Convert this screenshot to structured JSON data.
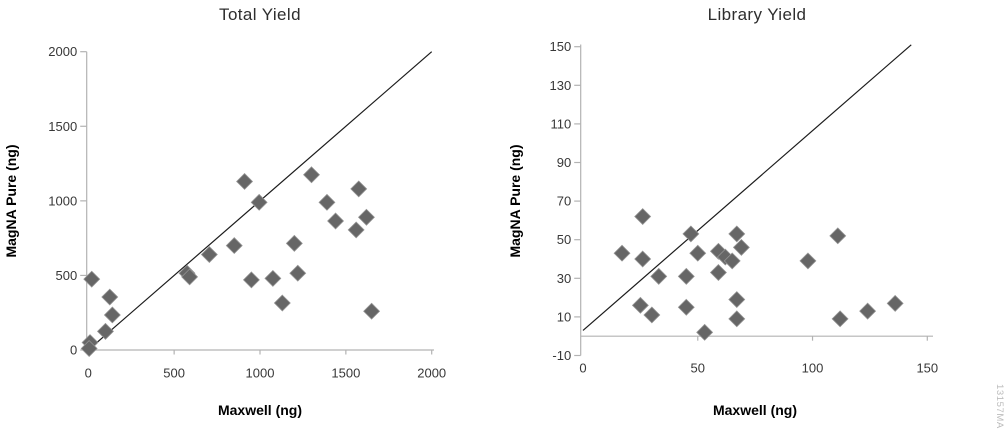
{
  "figure": {
    "watermark": "13157MA"
  },
  "colors": {
    "point": "#666666",
    "point_edge": "#929292",
    "axis": "#b3b3b3",
    "trend_line": "#1c1c1c",
    "tick_text": "#383838",
    "title_text": "#2e2e2e",
    "watermark_text": "#bcbcbc"
  },
  "chart_data": [
    {
      "type": "scatter",
      "title": "Total Yield",
      "xlabel": "Maxwell (ng)",
      "ylabel": "MagNA Pure (ng)",
      "xlim": [
        0,
        2000
      ],
      "ylim": [
        0,
        2000
      ],
      "x_ticks": [
        0,
        500,
        1000,
        1500,
        2000
      ],
      "y_ticks": [
        0,
        500,
        1000,
        1500,
        2000
      ],
      "x_axis_at_y": 0,
      "grid": false,
      "legend": false,
      "identity_line": {
        "x1": 10,
        "y1": 10,
        "x2": 2000,
        "y2": 2000
      },
      "points": [
        [
          910,
          1130
        ],
        [
          1300,
          1175
        ],
        [
          1575,
          1080
        ],
        [
          995,
          990
        ],
        [
          1390,
          990
        ],
        [
          1620,
          890
        ],
        [
          1440,
          865
        ],
        [
          1560,
          805
        ],
        [
          850,
          700
        ],
        [
          1200,
          715
        ],
        [
          705,
          640
        ],
        [
          575,
          515
        ],
        [
          590,
          490
        ],
        [
          950,
          470
        ],
        [
          1075,
          480
        ],
        [
          1220,
          515
        ],
        [
          1130,
          315
        ],
        [
          1650,
          260
        ],
        [
          20,
          475
        ],
        [
          125,
          355
        ],
        [
          140,
          235
        ],
        [
          100,
          125
        ],
        [
          10,
          50
        ],
        [
          5,
          10
        ]
      ]
    },
    {
      "type": "scatter",
      "title": "Library Yield",
      "xlabel": "Maxwell (ng)",
      "ylabel": "MagNA Pure (ng)",
      "xlim": [
        0,
        150
      ],
      "ylim": [
        -10,
        150
      ],
      "x_ticks": [
        0,
        50,
        100,
        150
      ],
      "y_ticks": [
        -10,
        10,
        30,
        50,
        70,
        90,
        110,
        130,
        150
      ],
      "x_axis_at_y": 0,
      "grid": false,
      "legend": false,
      "identity_line": {
        "x1": 0,
        "y1": 3,
        "x2": 143,
        "y2": 151
      },
      "points": [
        [
          26,
          62
        ],
        [
          47,
          53
        ],
        [
          67,
          53
        ],
        [
          17,
          43
        ],
        [
          26,
          40
        ],
        [
          50,
          43
        ],
        [
          59,
          44
        ],
        [
          62,
          41
        ],
        [
          65,
          39
        ],
        [
          69,
          46
        ],
        [
          98,
          39
        ],
        [
          111,
          52
        ],
        [
          33,
          31
        ],
        [
          45,
          31
        ],
        [
          59,
          33
        ],
        [
          67,
          19
        ],
        [
          25,
          16
        ],
        [
          45,
          15
        ],
        [
          30,
          11
        ],
        [
          67,
          9
        ],
        [
          112,
          9
        ],
        [
          124,
          13
        ],
        [
          136,
          17
        ],
        [
          53,
          2
        ]
      ]
    }
  ]
}
